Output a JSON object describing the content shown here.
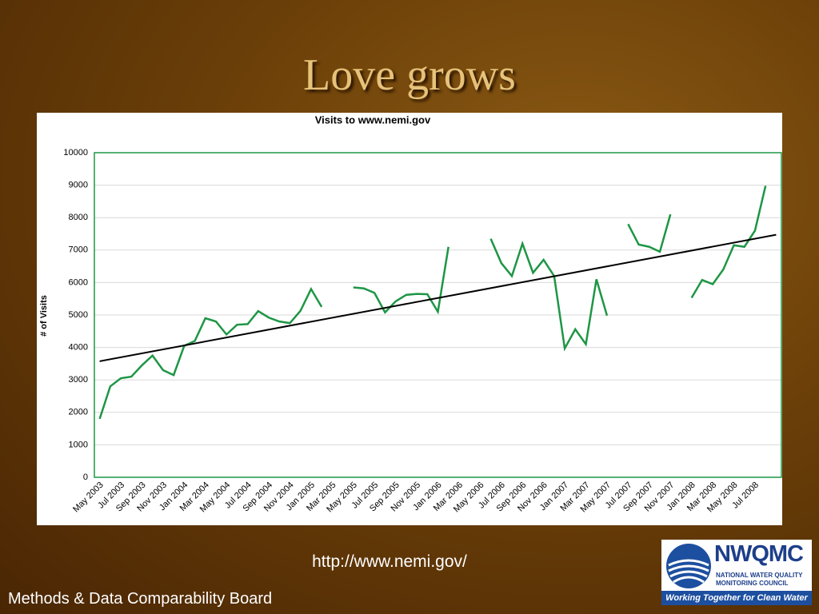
{
  "slide": {
    "title": "Love grows",
    "url": "http://www.nemi.gov/",
    "footer": "Methods & Data Comparability Board",
    "logo": {
      "name": "NWQMC",
      "line1": "NATIONAL WATER QUALITY",
      "line2": "MONITORING COUNCIL",
      "tagline": "Working Together for Clean Water"
    }
  },
  "chart_data": {
    "type": "line",
    "title": "Visits to www.nemi.gov",
    "y_label": "# of Visits",
    "categories": [
      "May 2003",
      null,
      "Jul 2003",
      null,
      "Sep 2003",
      null,
      "Nov 2003",
      null,
      "Jan 2004",
      null,
      "Mar 2004",
      null,
      "May 2004",
      null,
      "Jul 2004",
      null,
      "Sep 2004",
      null,
      "Nov 2004",
      null,
      "Jan 2005",
      null,
      "Mar 2005",
      null,
      "May 2005",
      null,
      "Jul 2005",
      null,
      "Sep 2005",
      null,
      "Nov 2005",
      null,
      "Jan 2006",
      null,
      "Mar 2006",
      null,
      "May 2006",
      null,
      "Jul 2006",
      null,
      "Sep 2006",
      null,
      "Nov 2006",
      null,
      "Jan 2007",
      null,
      "Mar 2007",
      null,
      "May 2007",
      null,
      "Jul 2007",
      null,
      "Sep 2007",
      null,
      "Nov 2007",
      null,
      "Jan 2008",
      null,
      "Mar 2008",
      null,
      "May 2008",
      null,
      "Jul 2008",
      null
    ],
    "series": [
      {
        "name": "Visits",
        "color": "#1e9645",
        "values": [
          1800,
          2800,
          3050,
          3100,
          3450,
          3750,
          3300,
          3150,
          4050,
          4200,
          4900,
          4800,
          4400,
          4700,
          4720,
          5120,
          4920,
          4800,
          4750,
          5130,
          5800,
          5250,
          null,
          null,
          5850,
          5820,
          5680,
          5080,
          5420,
          5620,
          5650,
          5640,
          5100,
          7100,
          null,
          null,
          null,
          7350,
          6600,
          6200,
          7200,
          6300,
          6700,
          6200,
          3970,
          4560,
          4100,
          6100,
          4980,
          null,
          7800,
          7170,
          7100,
          6950,
          8100,
          null,
          5530,
          6080,
          5950,
          6400,
          7150,
          7100,
          7600,
          8980
        ]
      }
    ],
    "trendline": "linear",
    "trend_color": "#000000",
    "ylim": [
      0,
      10000
    ],
    "yticks": [
      0,
      1000,
      2000,
      3000,
      4000,
      5000,
      6000,
      7000,
      8000,
      9000,
      10000
    ],
    "grid": true,
    "legend": false
  }
}
